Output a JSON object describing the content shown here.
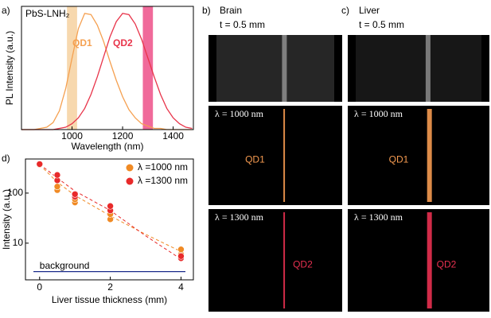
{
  "chart_data": [
    {
      "type": "line",
      "panel_label": "a)",
      "title": "PbS-LNH₂",
      "x_label": "Wavelength (nm)",
      "y_label": "PL Intensity (a.u.)",
      "x": [
        800,
        825,
        850,
        875,
        900,
        925,
        950,
        975,
        1000,
        1025,
        1050,
        1075,
        1100,
        1125,
        1150,
        1175,
        1200,
        1225,
        1250,
        1275,
        1300,
        1325,
        1350,
        1375,
        1400,
        1425,
        1450,
        1475
      ],
      "series": [
        {
          "name": "QD1",
          "color": "#f5a050",
          "values": [
            0,
            0,
            0,
            0.01,
            0.02,
            0.06,
            0.16,
            0.35,
            0.61,
            0.86,
            0.99,
            0.98,
            0.89,
            0.75,
            0.58,
            0.42,
            0.28,
            0.17,
            0.1,
            0.05,
            0.03,
            0.01,
            0.01,
            0,
            0,
            0,
            0,
            0
          ]
        },
        {
          "name": "QD2",
          "color": "#e8344a",
          "values": [
            0,
            0,
            0,
            0,
            0,
            0,
            0.01,
            0.02,
            0.05,
            0.1,
            0.18,
            0.3,
            0.45,
            0.62,
            0.79,
            0.92,
            0.99,
            0.98,
            0.9,
            0.77,
            0.61,
            0.45,
            0.3,
            0.18,
            0.1,
            0.05,
            0.02,
            0.01
          ]
        }
      ],
      "bands": [
        {
          "x": [
            980,
            1020
          ],
          "color": "#f7d8ae"
        },
        {
          "x": [
            1280,
            1320
          ],
          "color": "#f06a9a"
        }
      ],
      "xlim": [
        800,
        1480
      ],
      "ylim": [
        0,
        1.05
      ],
      "xticks": [
        1000,
        1200,
        1400
      ]
    },
    {
      "type": "scatter",
      "panel_label": "d)",
      "x_label": "Liver tissue thickness (mm)",
      "y_label": "Intensity (a.u.)",
      "log_y": true,
      "legend": "upper right",
      "series": [
        {
          "name": "λ =1000 nm",
          "color": "#f08a24",
          "x": [
            0,
            0.5,
            0.5,
            1,
            1,
            2,
            2,
            4,
            4
          ],
          "values": [
            370,
            115,
            135,
            65,
            75,
            30,
            38,
            6,
            7.5
          ],
          "fit_x": [
            0,
            0.5,
            1,
            2,
            3,
            4
          ],
          "fit_values": [
            370,
            165,
            90,
            35,
            15,
            6.8
          ]
        },
        {
          "name": "λ =1300 nm",
          "color": "#e82a2a",
          "x": [
            0,
            0.5,
            0.5,
            1,
            1,
            2,
            2,
            4,
            4
          ],
          "values": [
            380,
            180,
            230,
            85,
            95,
            45,
            55,
            5,
            5.5
          ],
          "fit_x": [
            0,
            0.5,
            1,
            2,
            3,
            4
          ],
          "fit_values": [
            380,
            200,
            110,
            45,
            14,
            4.8
          ]
        }
      ],
      "reference": {
        "label": "background",
        "value": 2.7,
        "color": "#1a2a8a"
      },
      "xlim": [
        -0.4,
        4.35
      ],
      "ylim": [
        1.85,
        480
      ],
      "xticks": [
        0,
        2,
        4
      ],
      "yticks": [
        10,
        100
      ]
    }
  ],
  "image_panels": [
    {
      "label": "b)",
      "title": "Brain",
      "depth": "t = 0.5 mm",
      "rows": [
        {
          "text": "λ = 1000 nm",
          "probe": "QD1"
        },
        {
          "text": "λ = 1300 nm",
          "probe": "QD2"
        }
      ]
    },
    {
      "label": "c)",
      "title": "Liver",
      "depth": "t = 0.5 mm",
      "rows": [
        {
          "text": "λ = 1000 nm",
          "probe": "QD1"
        },
        {
          "text": "λ = 1300 nm",
          "probe": "QD2"
        }
      ]
    }
  ]
}
